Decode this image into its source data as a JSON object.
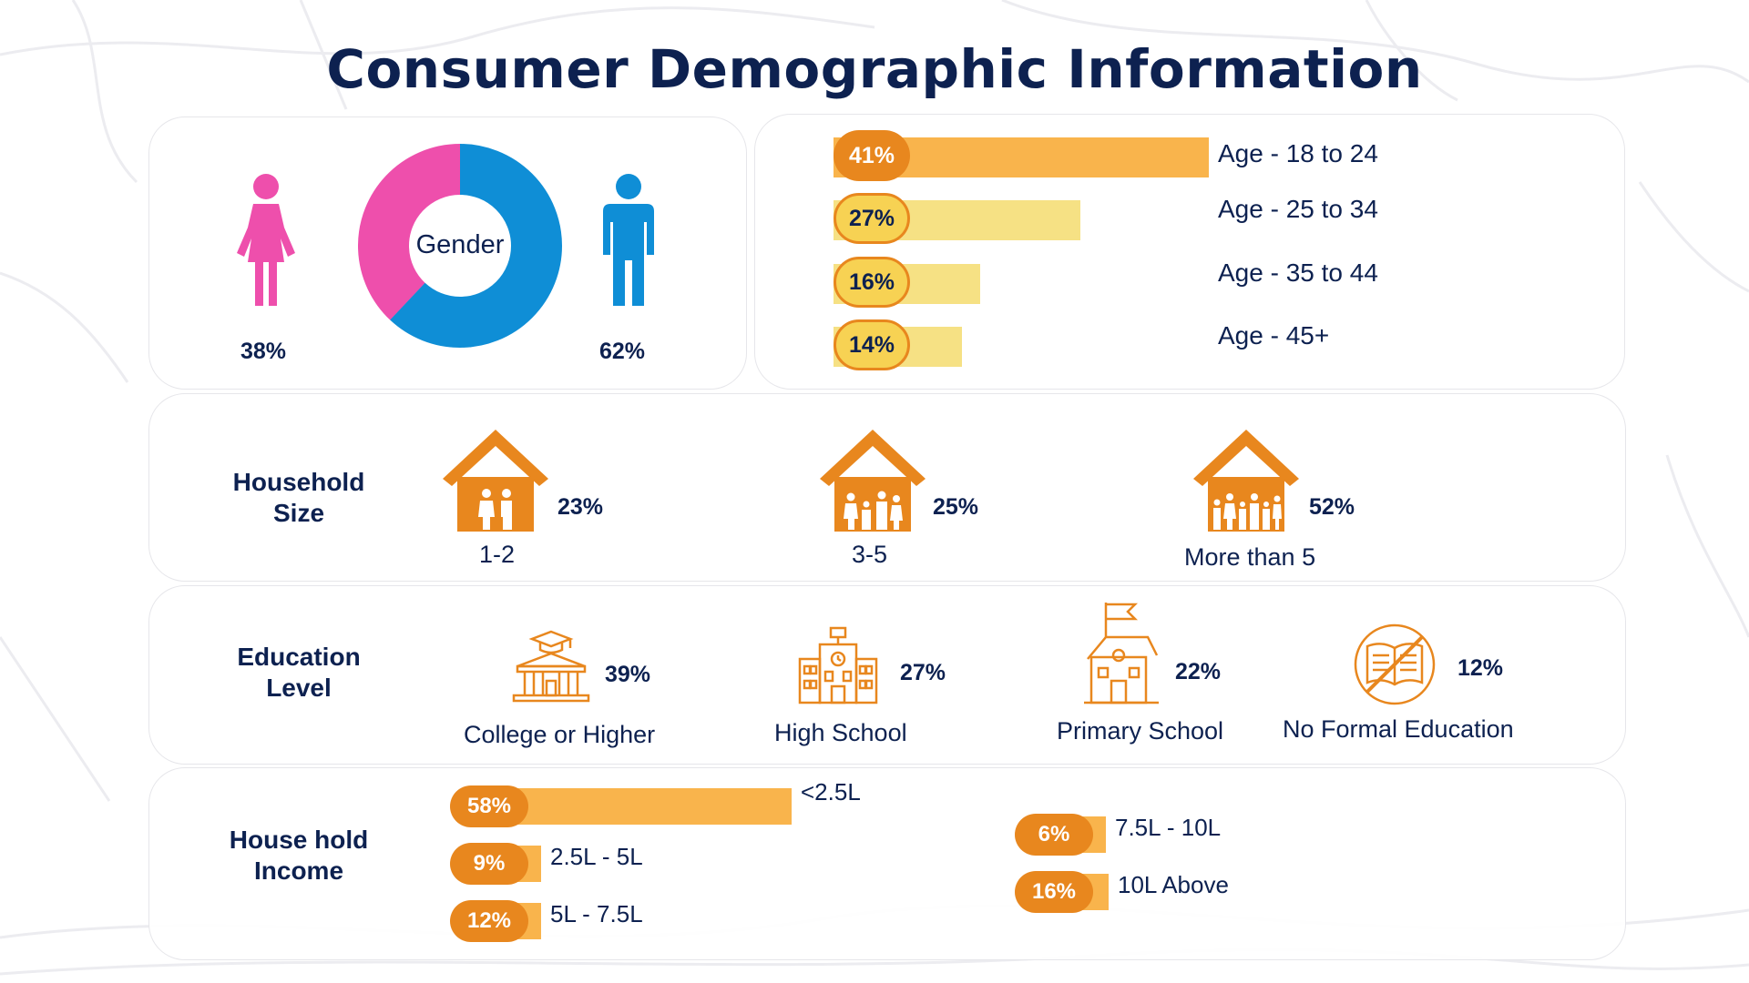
{
  "title": "Consumer Demographic Information",
  "colors": {
    "navy": "#0d2150",
    "female": "#ee4fac",
    "male": "#0f8ed6",
    "orange": "#e8871e",
    "light_orange": "#f9b44c",
    "pale_yellow": "#f6e184",
    "badge_yellow": "#f7d253"
  },
  "gender": {
    "center_label": "Gender",
    "female_pct": "38%",
    "male_pct": "62%",
    "female_icon": "woman-icon",
    "male_icon": "man-icon"
  },
  "age": {
    "items": [
      {
        "pct": "41%",
        "label": "Age - 18 to 24",
        "value": 41
      },
      {
        "pct": "27%",
        "label": "Age - 25 to 34",
        "value": 27
      },
      {
        "pct": "16%",
        "label": "Age - 35 to 44",
        "value": 16
      },
      {
        "pct": "14%",
        "label": "Age - 45+",
        "value": 14
      }
    ]
  },
  "household": {
    "section_label_line1": "Household",
    "section_label_line2": "Size",
    "items": [
      {
        "label": "1-2",
        "pct": "23%",
        "icon": "house-two-people-icon"
      },
      {
        "label": "3-5",
        "pct": "25%",
        "icon": "house-family-icon"
      },
      {
        "label": "More than 5",
        "pct": "52%",
        "icon": "house-large-family-icon"
      }
    ]
  },
  "education": {
    "section_label_line1": "Education",
    "section_label_line2": "Level",
    "items": [
      {
        "label": "College or Higher",
        "pct": "39%",
        "icon": "college-icon"
      },
      {
        "label": "High School",
        "pct": "27%",
        "icon": "high-school-icon"
      },
      {
        "label": "Primary School",
        "pct": "22%",
        "icon": "primary-school-icon"
      },
      {
        "label": "No Formal Education",
        "pct": "12%",
        "icon": "no-book-icon"
      }
    ]
  },
  "income": {
    "section_label_line1": "House hold",
    "section_label_line2": "Income",
    "items": [
      {
        "pct": "58%",
        "label": "<2.5L",
        "value": 58
      },
      {
        "pct": "9%",
        "label": "2.5L - 5L",
        "value": 9
      },
      {
        "pct": "12%",
        "label": "5L - 7.5L",
        "value": 12
      },
      {
        "pct": "6%",
        "label": "7.5L - 10L",
        "value": 6
      },
      {
        "pct": "16%",
        "label": "10L Above",
        "value": 16
      }
    ]
  },
  "chart_data": [
    {
      "type": "pie",
      "title": "Gender",
      "categories": [
        "Female",
        "Male"
      ],
      "values": [
        38,
        62
      ]
    },
    {
      "type": "bar",
      "categories": [
        "Age - 18 to 24",
        "Age - 25 to 34",
        "Age - 35 to 44",
        "Age - 45+"
      ],
      "values": [
        41,
        27,
        16,
        14
      ]
    },
    {
      "type": "bar",
      "title": "Household Size",
      "categories": [
        "1-2",
        "3-5",
        "More than 5"
      ],
      "values": [
        23,
        25,
        52
      ]
    },
    {
      "type": "bar",
      "title": "Education Level",
      "categories": [
        "College or Higher",
        "High School",
        "Primary School",
        "No Formal Education"
      ],
      "values": [
        39,
        27,
        22,
        12
      ]
    },
    {
      "type": "bar",
      "title": "House hold Income",
      "categories": [
        "<2.5L",
        "2.5L - 5L",
        "5L - 7.5L",
        "7.5L - 10L",
        "10L Above"
      ],
      "values": [
        58,
        9,
        12,
        6,
        16
      ]
    }
  ]
}
